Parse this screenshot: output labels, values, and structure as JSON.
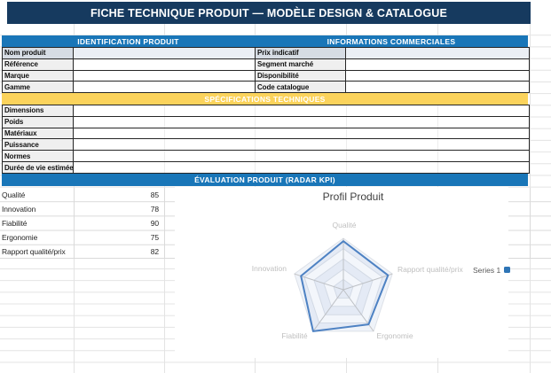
{
  "title_bar": {
    "text": "FICHE TECHNIQUE PRODUIT — MODÈLE DESIGN & CATALOGUE"
  },
  "sections": {
    "identification": {
      "header": "IDENTIFICATION PRODUIT",
      "rows": [
        {
          "label": "Nom produit",
          "value": ""
        },
        {
          "label": "Référence",
          "value": ""
        },
        {
          "label": "Marque",
          "value": ""
        },
        {
          "label": "Gamme",
          "value": ""
        }
      ]
    },
    "commercial": {
      "header": "INFORMATIONS COMMERCIALES",
      "rows": [
        {
          "label": "Prix indicatif",
          "value": ""
        },
        {
          "label": "Segment marché",
          "value": ""
        },
        {
          "label": "Disponibilité",
          "value": ""
        },
        {
          "label": "Code catalogue",
          "value": ""
        }
      ]
    },
    "specifications": {
      "header": "SPÉCIFICATIONS TECHNIQUES",
      "rows": [
        {
          "label": "Dimensions",
          "value": ""
        },
        {
          "label": "Poids",
          "value": ""
        },
        {
          "label": "Matériaux",
          "value": ""
        },
        {
          "label": "Puissance",
          "value": ""
        },
        {
          "label": "Normes",
          "value": ""
        },
        {
          "label": "Durée de vie estimée",
          "value": ""
        }
      ]
    },
    "evaluation": {
      "header": "ÉVALUATION PRODUIT (RADAR KPI)",
      "rows": [
        {
          "label": "Qualité",
          "value": "85"
        },
        {
          "label": "Innovation",
          "value": "78"
        },
        {
          "label": "Fiabilité",
          "value": "90"
        },
        {
          "label": "Ergonomie",
          "value": "75"
        },
        {
          "label": "Rapport qualité/prix",
          "value": "82"
        }
      ]
    }
  },
  "chart_data": {
    "type": "radar",
    "title": "Profil Produit",
    "categories": [
      "Qualité",
      "Rapport qualité/prix",
      "Ergonomie",
      "Fiabilité",
      "Innovation"
    ],
    "series": [
      {
        "name": "Series 1",
        "values": [
          85,
          82,
          75,
          90,
          78
        ]
      }
    ],
    "rmax": 90,
    "rings": 5,
    "legend_position": "right",
    "line_color": "#4E82C3",
    "ring_fill": "#EFF3F9",
    "ring_stroke": "#DDE1E8",
    "spoke_stroke": "#C6C6C6",
    "label_color": "#BFBFBF"
  },
  "colors": {
    "title_bar": "#163A5F",
    "section_header": "#1976B8",
    "spec_header": "#FBD35C",
    "first_row_tint": "#D6DCE4",
    "legend_marker": "#2E75B6"
  }
}
